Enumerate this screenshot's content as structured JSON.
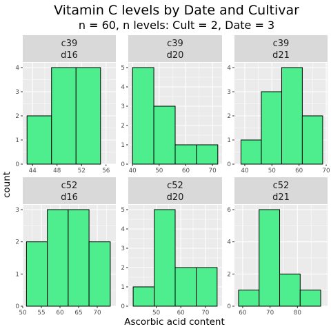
{
  "chart_data": {
    "type": "bar",
    "title": "Vitamin C levels by Date and Cultivar",
    "subtitle": "n = 60, n levels: Cult = 2, Date = 3",
    "xlabel": "Ascorbic acid content",
    "ylabel": "count",
    "grid": true,
    "colors": {
      "fill": "#4eed8e",
      "panel_bg": "#ebebeb",
      "strip_bg": "#d9d9d9",
      "grid_major": "#ffffff",
      "outline": "#000000"
    },
    "panels": [
      {
        "cultivar": "c39",
        "date": "d16",
        "xlim": [
          42.4,
          57.6
        ],
        "xticks": [
          44,
          48,
          52,
          56
        ],
        "ylim": [
          0,
          4.2
        ],
        "yticks": [
          0,
          1,
          2,
          3,
          4
        ],
        "bins": [
          {
            "x0": 43.1,
            "x1": 47.1,
            "count": 2
          },
          {
            "x0": 47.1,
            "x1": 51.1,
            "count": 4
          },
          {
            "x0": 51.1,
            "x1": 55.1,
            "count": 4
          }
        ]
      },
      {
        "cultivar": "c39",
        "date": "d20",
        "xlim": [
          38.4,
          73.6
        ],
        "xticks": [
          40,
          50,
          60,
          70
        ],
        "ylim": [
          0,
          5.25
        ],
        "yticks": [
          0,
          1,
          2,
          3,
          4,
          5
        ],
        "bins": [
          {
            "x0": 40.0,
            "x1": 48.0,
            "count": 5
          },
          {
            "x0": 48.0,
            "x1": 56.0,
            "count": 3
          },
          {
            "x0": 56.0,
            "x1": 64.0,
            "count": 1
          },
          {
            "x0": 64.0,
            "x1": 72.0,
            "count": 1
          }
        ]
      },
      {
        "cultivar": "c39",
        "date": "d21",
        "xlim": [
          36.2,
          70.5
        ],
        "xticks": [
          40,
          50,
          60,
          70
        ],
        "ylim": [
          0,
          4.2
        ],
        "yticks": [
          0,
          1,
          2,
          3,
          4
        ],
        "bins": [
          {
            "x0": 38.6,
            "x1": 46.1,
            "count": 1
          },
          {
            "x0": 46.1,
            "x1": 53.6,
            "count": 3
          },
          {
            "x0": 53.6,
            "x1": 61.2,
            "count": 4
          },
          {
            "x0": 61.2,
            "x1": 68.7,
            "count": 2
          }
        ]
      },
      {
        "cultivar": "c52",
        "date": "d16",
        "xlim": [
          50.0,
          75.0
        ],
        "xticks": [
          50,
          55,
          60,
          65,
          70
        ],
        "ylim": [
          0,
          3.15
        ],
        "yticks": [
          0,
          1,
          2,
          3
        ],
        "bins": [
          {
            "x0": 51.0,
            "x1": 56.6,
            "count": 2
          },
          {
            "x0": 56.6,
            "x1": 62.2,
            "count": 3
          },
          {
            "x0": 62.2,
            "x1": 67.8,
            "count": 3
          },
          {
            "x0": 67.8,
            "x1": 73.5,
            "count": 2
          }
        ]
      },
      {
        "cultivar": "c52",
        "date": "d20",
        "xlim": [
          38.6,
          76.8
        ],
        "xticks": [
          50,
          60,
          70
        ],
        "ylim": [
          0,
          5.25
        ],
        "yticks": [
          0,
          1,
          2,
          3,
          4,
          5
        ],
        "bins": [
          {
            "x0": 40.6,
            "x1": 49.2,
            "count": 1
          },
          {
            "x0": 49.2,
            "x1": 57.7,
            "count": 5
          },
          {
            "x0": 57.7,
            "x1": 66.3,
            "count": 2
          },
          {
            "x0": 66.3,
            "x1": 74.8,
            "count": 2
          }
        ]
      },
      {
        "cultivar": "c52",
        "date": "d21",
        "xlim": [
          57.0,
          91.0
        ],
        "xticks": [
          60,
          70,
          80
        ],
        "ylim": [
          0,
          6.3
        ],
        "yticks": [
          0,
          2,
          4,
          6
        ],
        "bins": [
          {
            "x0": 58.5,
            "x1": 66.0,
            "count": 1
          },
          {
            "x0": 66.0,
            "x1": 73.5,
            "count": 6
          },
          {
            "x0": 73.5,
            "x1": 81.0,
            "count": 2
          },
          {
            "x0": 81.0,
            "x1": 88.5,
            "count": 1
          }
        ]
      }
    ]
  }
}
